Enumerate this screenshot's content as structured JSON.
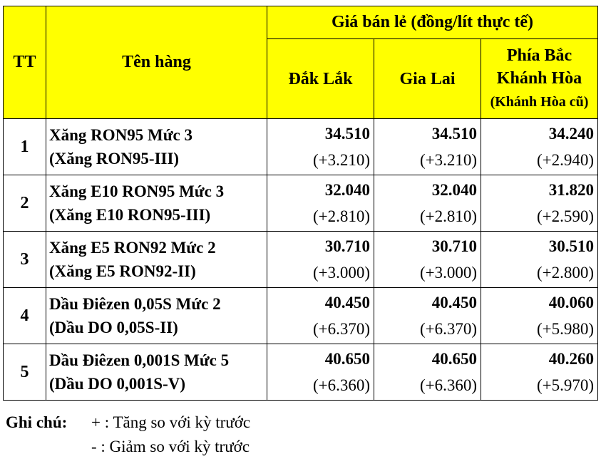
{
  "header": {
    "tt": "TT",
    "name": "Tên hàng",
    "price_group": "Giá bán lẻ (đồng/lít thực tế)",
    "regions": [
      {
        "label": "Đắk Lắk"
      },
      {
        "label": "Gia Lai"
      },
      {
        "label": "Phía Bắc Khánh Hòa",
        "sub": "(Khánh Hòa cũ)"
      }
    ]
  },
  "rows": [
    {
      "tt": "1",
      "name1": "Xăng RON95 Mức 3",
      "name2": "(Xăng RON95-III)",
      "prices": [
        "34.510",
        "34.510",
        "34.240"
      ],
      "changes": [
        "(+3.210)",
        "(+3.210)",
        "(+2.940)"
      ]
    },
    {
      "tt": "2",
      "name1": "Xăng E10 RON95 Mức 3",
      "name2": "(Xăng E10 RON95-III)",
      "prices": [
        "32.040",
        "32.040",
        "31.820"
      ],
      "changes": [
        "(+2.810)",
        "(+2.810)",
        "(+2.590)"
      ]
    },
    {
      "tt": "3",
      "name1": "Xăng E5 RON92 Mức 2",
      "name2": "(Xăng E5 RON92-II)",
      "prices": [
        "30.710",
        "30.710",
        "30.510"
      ],
      "changes": [
        "(+3.000)",
        "(+3.000)",
        "(+2.800)"
      ]
    },
    {
      "tt": "4",
      "name1": "Dầu Điêzen 0,05S Mức 2",
      "name2": "(Dầu DO 0,05S-II)",
      "prices": [
        "40.450",
        "40.450",
        "40.060"
      ],
      "changes": [
        "(+6.370)",
        "(+6.370)",
        "(+5.980)"
      ]
    },
    {
      "tt": "5",
      "name1": "Dầu Điêzen 0,001S Mức 5",
      "name2": "(Dầu DO 0,001S-V)",
      "prices": [
        "40.650",
        "40.650",
        "40.260"
      ],
      "changes": [
        "(+6.360)",
        "(+6.360)",
        "(+5.970)"
      ]
    }
  ],
  "notes": {
    "label": "Ghi chú:",
    "plus": "+ : Tăng so với kỳ trước",
    "minus": "-  : Giảm so với kỳ trước"
  },
  "colors": {
    "header_bg": "#ffff00"
  }
}
